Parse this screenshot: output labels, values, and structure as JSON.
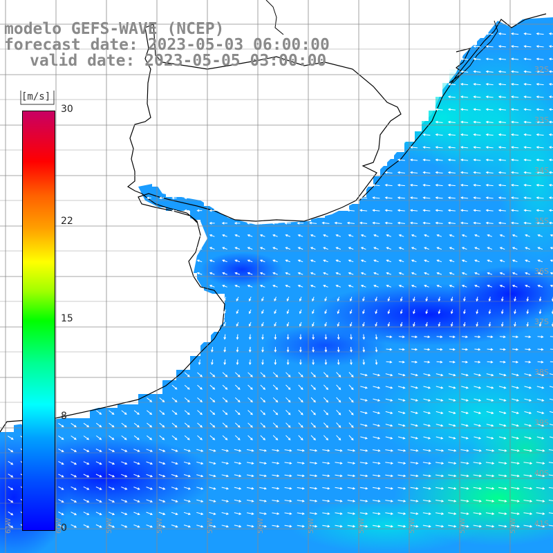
{
  "title": {
    "line1": "modelo GEFS-WAVE (NCEP)",
    "line2": "forecast date: 2023-05-03 06:00:00",
    "line3": "valid date: 2023-05-05 03:00:00"
  },
  "colorbar": {
    "unit": "[m/s]",
    "ticks": [
      {
        "value": 30,
        "label": "30"
      },
      {
        "value": 22,
        "label": "22"
      },
      {
        "value": 15,
        "label": "15"
      },
      {
        "value": 8,
        "label": "8"
      },
      {
        "value": 0,
        "label": "0"
      }
    ],
    "range": [
      0,
      30
    ]
  },
  "grid": {
    "lon_labels": [
      "61W",
      "60W",
      "59W",
      "58W",
      "57W",
      "56W",
      "55W",
      "54W",
      "53W",
      "52W",
      "51W"
    ],
    "lat_labels": [
      "32S",
      "33S",
      "34S",
      "35S",
      "36S",
      "37S",
      "38S",
      "39S",
      "40S",
      "41S"
    ]
  },
  "colors": {
    "land": "#ffffff",
    "grid_line": "#888888",
    "coastline": "#000000",
    "title_text": "#8a8a8a",
    "arrow": "#ffffff"
  }
}
